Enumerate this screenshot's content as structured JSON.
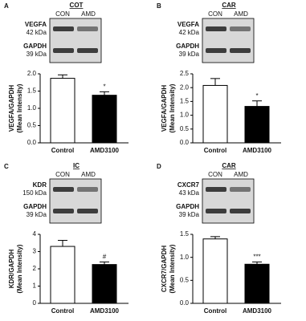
{
  "chart_data": [
    {
      "type": "bar",
      "panel": "A",
      "title": "COT",
      "lanes": [
        "CON",
        "AMD"
      ],
      "blot_labels": [
        [
          "VEGFA",
          "42 kDa"
        ],
        [
          "GAPDH",
          "39 kDa"
        ]
      ],
      "ylabel": [
        "VEGFA/GAPDH",
        "(Mean Intensity)"
      ],
      "categories": [
        "Control",
        "AMD3100"
      ],
      "values": [
        1.87,
        1.38
      ],
      "errors": [
        0.1,
        0.1
      ],
      "significance": "*",
      "colors": [
        "#ffffff",
        "#000000"
      ],
      "ylim": [
        0,
        2.0
      ],
      "yticks": [
        {
          "value": 0,
          "label": "0.0"
        },
        {
          "value": 0.5,
          "label": "0.5"
        },
        {
          "value": 1,
          "label": "1.0"
        },
        {
          "value": 1.5,
          "label": "1.5"
        },
        {
          "value": 2,
          "label": "2.0"
        }
      ]
    },
    {
      "type": "bar",
      "panel": "B",
      "title": "CAR",
      "lanes": [
        "CON",
        "AMD"
      ],
      "blot_labels": [
        [
          "VEGFA",
          "42 kDa"
        ],
        [
          "GAPDH",
          "39 kDa"
        ]
      ],
      "ylabel": [
        "VEGFA/GAPDH",
        "(Mean Intensity)"
      ],
      "categories": [
        "Control",
        "AMD3100"
      ],
      "values": [
        2.08,
        1.32
      ],
      "errors": [
        0.25,
        0.2
      ],
      "significance": "*",
      "colors": [
        "#ffffff",
        "#000000"
      ],
      "ylim": [
        0,
        2.5
      ],
      "yticks": [
        {
          "value": 0,
          "label": "0.0"
        },
        {
          "value": 0.5,
          "label": "0.5"
        },
        {
          "value": 1,
          "label": "1.0"
        },
        {
          "value": 1.5,
          "label": "1.5"
        },
        {
          "value": 2,
          "label": "2.0"
        },
        2.5
      ]
    },
    {
      "type": "bar",
      "panel": "C",
      "title": "IC",
      "lanes": [
        "CON",
        "AMD"
      ],
      "blot_labels": [
        [
          "KDR",
          "150 kDa"
        ],
        [
          "GAPDH",
          "39 kDa"
        ]
      ],
      "ylabel": [
        "KDR/GAPDH",
        "(Mean Intensity)"
      ],
      "categories": [
        "Control",
        "AMD3100"
      ],
      "values": [
        3.3,
        2.25
      ],
      "errors": [
        0.35,
        0.15
      ],
      "significance": "#",
      "colors": [
        "#ffffff",
        "#000000"
      ],
      "ylim": [
        0,
        4
      ],
      "yticks": [
        0,
        1,
        2,
        3,
        4
      ]
    },
    {
      "type": "bar",
      "panel": "D",
      "title": "CAR",
      "lanes": [
        "CON",
        "AMD"
      ],
      "blot_labels": [
        [
          "CXCR7",
          "43 kDa"
        ],
        [
          "GAPDH",
          "39 kDa"
        ]
      ],
      "ylabel": [
        "CXCR7/GAPDH",
        "(Mean Intensity)"
      ],
      "categories": [
        "Control",
        "AMD3100"
      ],
      "values": [
        1.4,
        0.85
      ],
      "errors": [
        0.05,
        0.05
      ],
      "significance": "***",
      "colors": [
        "#ffffff",
        "#000000"
      ],
      "ylim": [
        0,
        1.5
      ],
      "yticks": [
        {
          "value": 0,
          "label": "0.0"
        },
        {
          "value": 0.5,
          "label": "0.5"
        },
        {
          "value": 1,
          "label": "1.0"
        },
        {
          "value": 1.5,
          "label": "1.5"
        }
      ]
    }
  ]
}
